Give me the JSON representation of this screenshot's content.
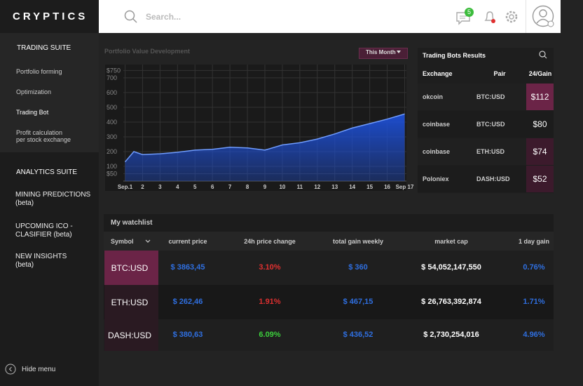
{
  "header": {
    "logo": "CRYPTICS",
    "search_placeholder": "Search...",
    "notification_count": "5"
  },
  "sidebar": {
    "trading_suite": {
      "title": "TRADING SUITE",
      "items": [
        {
          "lines": [
            "Portfolio forming"
          ]
        },
        {
          "lines": [
            "Optimization"
          ]
        },
        {
          "lines": [
            "Trading Bot"
          ]
        },
        {
          "lines": [
            "Profit calculation",
            "per stock exchange"
          ]
        }
      ]
    },
    "analytics_suite": {
      "title": "ANALYTICS SUITE",
      "items": [
        {
          "lines": [
            "MINING PREDICTIONS",
            "(beta)"
          ]
        },
        {
          "lines": [
            "UPCOMING ICO -",
            "CLASIFIER (beta)"
          ]
        },
        {
          "lines": [
            "NEW INSIGHTS",
            "(beta)"
          ]
        }
      ]
    },
    "hide_menu": "Hide menu"
  },
  "chart_data": {
    "type": "area",
    "title": "Portfolio Value Development",
    "range_selector": "This Month",
    "x": [
      1,
      1.5,
      2,
      3,
      4,
      5,
      6,
      7,
      8,
      9,
      10,
      11,
      12,
      13,
      14,
      15,
      16,
      17
    ],
    "values": [
      130,
      200,
      180,
      185,
      195,
      210,
      215,
      230,
      225,
      210,
      245,
      260,
      285,
      320,
      360,
      390,
      420,
      455
    ],
    "color": "#1d4fd6",
    "xlim": [
      0.9,
      17.1
    ],
    "xticks": [
      {
        "value": 1,
        "label": "Sep.1"
      },
      2,
      3,
      4,
      5,
      6,
      7,
      8,
      9,
      10,
      11,
      12,
      13,
      14,
      15,
      16,
      {
        "value": 17,
        "label": "Sep 17"
      }
    ],
    "ylim": [
      0,
      790
    ],
    "yticks": [
      {
        "value": 750,
        "label": "$750"
      },
      700,
      600,
      500,
      400,
      300,
      200,
      100,
      {
        "value": 50,
        "label": "$50"
      }
    ],
    "grid": true
  },
  "trading_bots": {
    "title": "Trading Bots Results",
    "columns": [
      "Exchange",
      "Pair",
      "24/Gain"
    ],
    "rows": [
      [
        "okcoin",
        "BTC:USD",
        "$112"
      ],
      [
        "coinbase",
        "BTC:USD",
        "$80"
      ],
      [
        "coinbase",
        "ETH:USD",
        "$74"
      ],
      [
        "Poloniex",
        "DASH:USD",
        "$52"
      ]
    ]
  },
  "watchlist": {
    "title": "My watchlist",
    "columns": [
      "Symbol",
      "current price",
      "24h price change",
      "total gain weekly",
      "market cap",
      "1 day gain"
    ],
    "rows": [
      [
        "BTC:USD",
        "$ 3863,45",
        "3.10%",
        "$ 360",
        "$ 54,052,147,550",
        "0.76%"
      ],
      [
        "ETH:USD",
        "$ 262,46",
        "1.91%",
        "$ 467,15",
        "$ 26,763,392,874",
        "1.71%"
      ],
      [
        "DASH:USD",
        "$ 380,63",
        "6.09%",
        "$ 436,52",
        "$ 2,730,254,016",
        "4.96%"
      ]
    ]
  }
}
